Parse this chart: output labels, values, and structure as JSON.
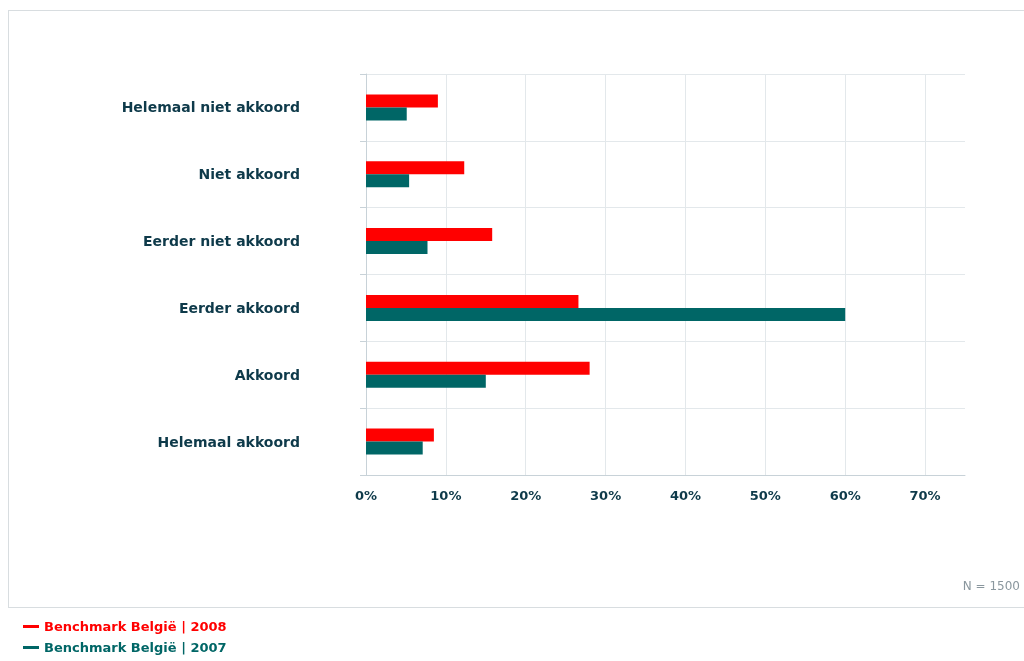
{
  "chart_data": {
    "type": "bar",
    "orientation": "horizontal",
    "categories": [
      "Helemaal niet akkoord",
      "Niet akkoord",
      "Eerder niet akkoord",
      "Eerder akkoord",
      "Akkoord",
      "Helemaal akkoord"
    ],
    "series": [
      {
        "name": "Benchmark België | 2008",
        "color": "#ff0000",
        "values": [
          9.0,
          12.3,
          15.8,
          26.6,
          28.0,
          8.5
        ]
      },
      {
        "name": "Benchmark België | 2007",
        "color": "#006666",
        "values": [
          5.1,
          5.4,
          7.7,
          60.0,
          15.0,
          7.1
        ]
      }
    ],
    "xlim": [
      0,
      75
    ],
    "xticks": [
      {
        "value": 0,
        "label": "0%"
      },
      {
        "value": 10,
        "label": "10%"
      },
      {
        "value": 20,
        "label": "20%"
      },
      {
        "value": 30,
        "label": "30%"
      },
      {
        "value": 40,
        "label": "40%"
      },
      {
        "value": 50,
        "label": "50%"
      },
      {
        "value": 60,
        "label": "60%"
      },
      {
        "value": 70,
        "label": "70%"
      }
    ],
    "annotations": [
      "N = 1500"
    ],
    "grid": true,
    "legend": "bottom left"
  }
}
